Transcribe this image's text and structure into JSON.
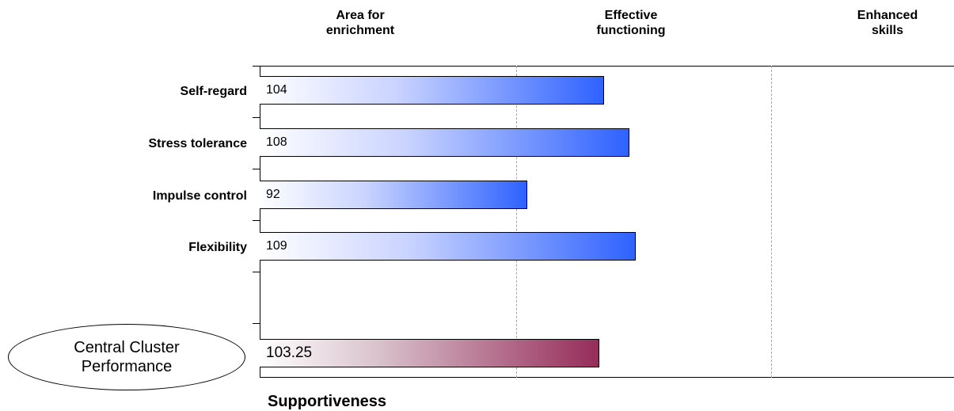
{
  "zones": [
    {
      "line1": "Area for",
      "line2": "enrichment"
    },
    {
      "line1": "Effective",
      "line2": "functioning"
    },
    {
      "line1": "Enhanced",
      "line2": "skills"
    }
  ],
  "cluster": {
    "line1": "Central Cluster",
    "line2": "Performance"
  },
  "footer": "Supportiveness",
  "colors": {
    "bar_end": "#2e62ff",
    "cluster_end": "#962c5a"
  },
  "chart_data": {
    "type": "bar",
    "orientation": "horizontal",
    "categories": [
      "Self-regard",
      "Stress tolerance",
      "Impulse control",
      "Flexibility"
    ],
    "values": [
      104,
      108,
      92,
      109
    ],
    "value_labels": [
      "104",
      "108",
      "92",
      "109"
    ],
    "summary": {
      "label": "Central Cluster Performance",
      "value": 103.25,
      "value_label": "103.25"
    },
    "zones": [
      "Area for enrichment",
      "Effective functioning",
      "Enhanced skills"
    ],
    "xlim": [
      50,
      160
    ],
    "zone_boundaries": [
      90,
      130
    ],
    "grid": "dashed vertical zone separators",
    "legend": "none"
  }
}
